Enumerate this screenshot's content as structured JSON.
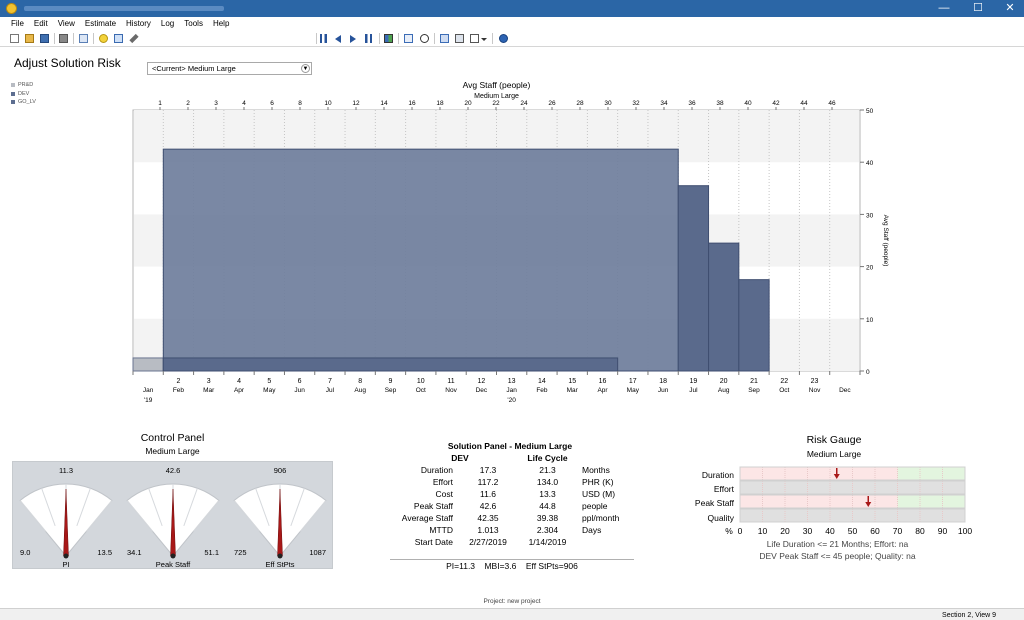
{
  "window": {
    "minimize": "—",
    "maximize": "☐",
    "close": "✕"
  },
  "menu": [
    "File",
    "Edit",
    "View",
    "Estimate",
    "History",
    "Log",
    "Tools",
    "Help"
  ],
  "toolbar": {
    "solution_select": "<Current> Medium Large"
  },
  "page": {
    "title": "Adjust Solution Risk"
  },
  "legend": [
    {
      "label": "PR&D",
      "color": "#b8bcc3"
    },
    {
      "label": "DEV",
      "color": "#5d6e90"
    },
    {
      "label": "GO_LV",
      "color": "#5d6e90"
    }
  ],
  "chart_data": {
    "type": "bar",
    "title": "Avg Staff (people)",
    "subtitle": "Medium Large",
    "ylabel": "Avg Staff (people)",
    "ylim": [
      0,
      50
    ],
    "yticks": [
      "0",
      "10",
      "20",
      "30",
      "40",
      "50"
    ],
    "top_ticks": [
      "1",
      "2",
      "3",
      "4",
      "6",
      "8",
      "10",
      "12",
      "14",
      "16",
      "18",
      "20",
      "22",
      "24",
      "26",
      "28",
      "30",
      "32",
      "34",
      "36",
      "38",
      "40",
      "42",
      "44",
      "46"
    ],
    "index_labels": [
      "2",
      "3",
      "4",
      "5",
      "6",
      "7",
      "8",
      "9",
      "10",
      "11",
      "12",
      "13",
      "14",
      "15",
      "16",
      "17",
      "18",
      "19",
      "20",
      "21",
      "22",
      "23"
    ],
    "month_labels": [
      "Jan",
      "Feb",
      "Mar",
      "Apr",
      "May",
      "Jun",
      "Jul",
      "Aug",
      "Sep",
      "Oct",
      "Nov",
      "Dec",
      "Jan",
      "Feb",
      "Mar",
      "Apr",
      "May",
      "Jun",
      "Jul",
      "Aug",
      "Sep",
      "Oct",
      "Nov",
      "Dec"
    ],
    "year_labels": [
      "'19",
      "'20"
    ],
    "series": [
      {
        "name": "PR&D",
        "bars": [
          {
            "start": "Jan 2019",
            "end": "Feb 2019",
            "value": 2.5
          }
        ]
      },
      {
        "name": "DEV",
        "bars": [
          {
            "start": "Feb 2019",
            "end": "Jul 2020",
            "value": 42.5
          }
        ]
      },
      {
        "name": "GO_LV",
        "bars": [
          {
            "start": "Feb 2019",
            "end": "May 2020",
            "value": 2.5
          },
          {
            "start": "Jul 2020",
            "end": "Aug 2020",
            "value": 35.5
          },
          {
            "start": "Aug 2020",
            "end": "Sep 2020",
            "value": 24.5
          },
          {
            "start": "Sep 2020",
            "end": "Oct 2020",
            "value": 17.5
          }
        ]
      }
    ]
  },
  "control_panel": {
    "title": "Control Panel",
    "subtitle": "Medium Large",
    "gauges": [
      {
        "label": "PI",
        "value": "11.3",
        "min": "9.0",
        "max": "13.5"
      },
      {
        "label": "Peak Staff",
        "value": "42.6",
        "min": "34.1",
        "max": "51.1"
      },
      {
        "label": "Eff StPts",
        "value": "906",
        "min": "725",
        "max": "1087"
      }
    ]
  },
  "solution_panel": {
    "title": "Solution Panel - Medium Large",
    "col_dev": "DEV",
    "col_life": "Life Cycle",
    "rows": [
      {
        "label": "Duration",
        "dev": "17.3",
        "life": "21.3",
        "unit": "Months"
      },
      {
        "label": "Effort",
        "dev": "117.2",
        "life": "134.0",
        "unit": "PHR (K)"
      },
      {
        "label": "Cost",
        "dev": "11.6",
        "life": "13.3",
        "unit": "USD (M)"
      },
      {
        "label": "Peak Staff",
        "dev": "42.6",
        "life": "44.8",
        "unit": "people"
      },
      {
        "label": "Average Staff",
        "dev": "42.35",
        "life": "39.38",
        "unit": "ppl/month"
      },
      {
        "label": "MTTD",
        "dev": "1.013",
        "life": "2.304",
        "unit": "Days"
      },
      {
        "label": "Start Date",
        "dev": "2/27/2019",
        "life": "1/14/2019",
        "unit": ""
      }
    ],
    "footer": "PI=11.3    MBI=3.6    Eff StPts=906"
  },
  "risk_gauge": {
    "title": "Risk Gauge",
    "subtitle": "Medium Large",
    "rows": [
      {
        "label": "Duration",
        "marker": 43,
        "colors": [
          "#fce6e6",
          "#e3f5df"
        ]
      },
      {
        "label": "Effort",
        "marker": null,
        "colors": [
          "#e0e0e0",
          "#e0e0e0"
        ]
      },
      {
        "label": "Peak Staff",
        "marker": 57,
        "colors": [
          "#fce6e6",
          "#e3f5df"
        ]
      },
      {
        "label": "Quality",
        "marker": null,
        "colors": [
          "#e0e0e0",
          "#e0e0e0"
        ]
      }
    ],
    "axis_prefix": "%",
    "ticks": [
      "0",
      "10",
      "20",
      "30",
      "40",
      "50",
      "60",
      "70",
      "80",
      "90",
      "100"
    ],
    "note1": "Life Duration  <= 21 Months;  Effort:  na",
    "note2": "DEV Peak Staff  <= 45 people;  Quality:  na"
  },
  "footer": {
    "project": "Project: new project",
    "status": "Section 2, View 9"
  }
}
